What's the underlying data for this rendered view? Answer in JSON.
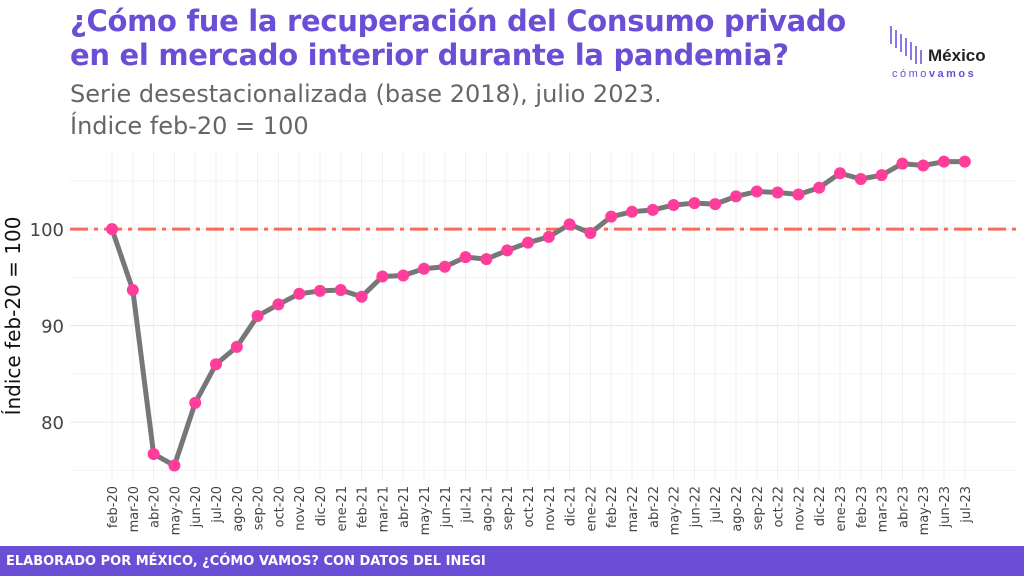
{
  "header": {
    "title_line1": "¿Cómo fue la recuperación del Consumo privado",
    "title_line2": "en el mercado interior durante la pandemia?",
    "subtitle_line1": "Serie desestacionalizada (base 2018), julio 2023.",
    "subtitle_line2": "Índice feb-20 = 100"
  },
  "logo": {
    "word": "México",
    "sub_light": "cómo",
    "sub_bold": "vamos"
  },
  "footer": {
    "text": "ELABORADO POR MÉXICO, ¿CÓMO VAMOS? CON DATOS DEL INEGI"
  },
  "colors": {
    "accent": "#6a4fd6",
    "line": "#777777",
    "point": "#ff3d9a",
    "reference": "#fb6b5b"
  },
  "chart_data": {
    "type": "line",
    "ylabel": "Índice feb-20 = 100",
    "xlabel": "",
    "ylim": [
      74,
      108
    ],
    "yticks": [
      80,
      90,
      100
    ],
    "reference_line": 100,
    "grid": true,
    "categories": [
      "feb-20",
      "mar-20",
      "abr-20",
      "may-20",
      "jun-20",
      "jul-20",
      "ago-20",
      "sep-20",
      "oct-20",
      "nov-20",
      "dic-20",
      "ene-21",
      "feb-21",
      "mar-21",
      "abr-21",
      "may-21",
      "jun-21",
      "jul-21",
      "ago-21",
      "sep-21",
      "oct-21",
      "nov-21",
      "dic-21",
      "ene-22",
      "feb-22",
      "mar-22",
      "abr-22",
      "may-22",
      "jun-22",
      "jul-22",
      "ago-22",
      "sep-22",
      "oct-22",
      "nov-22",
      "dic-22",
      "ene-23",
      "feb-23",
      "mar-23",
      "abr-23",
      "may-23",
      "jun-23",
      "jul-23"
    ],
    "values": [
      100.0,
      93.7,
      76.7,
      75.5,
      82.0,
      86.0,
      87.8,
      91.0,
      92.2,
      93.3,
      93.6,
      93.7,
      93.0,
      95.1,
      95.2,
      95.9,
      96.1,
      97.1,
      96.9,
      97.8,
      98.6,
      99.2,
      100.5,
      99.6,
      101.3,
      101.8,
      102.0,
      102.5,
      102.7,
      102.6,
      103.4,
      103.9,
      103.8,
      103.6,
      104.3,
      105.8,
      105.2,
      105.6,
      106.8,
      106.6,
      107.0,
      107.0
    ]
  }
}
